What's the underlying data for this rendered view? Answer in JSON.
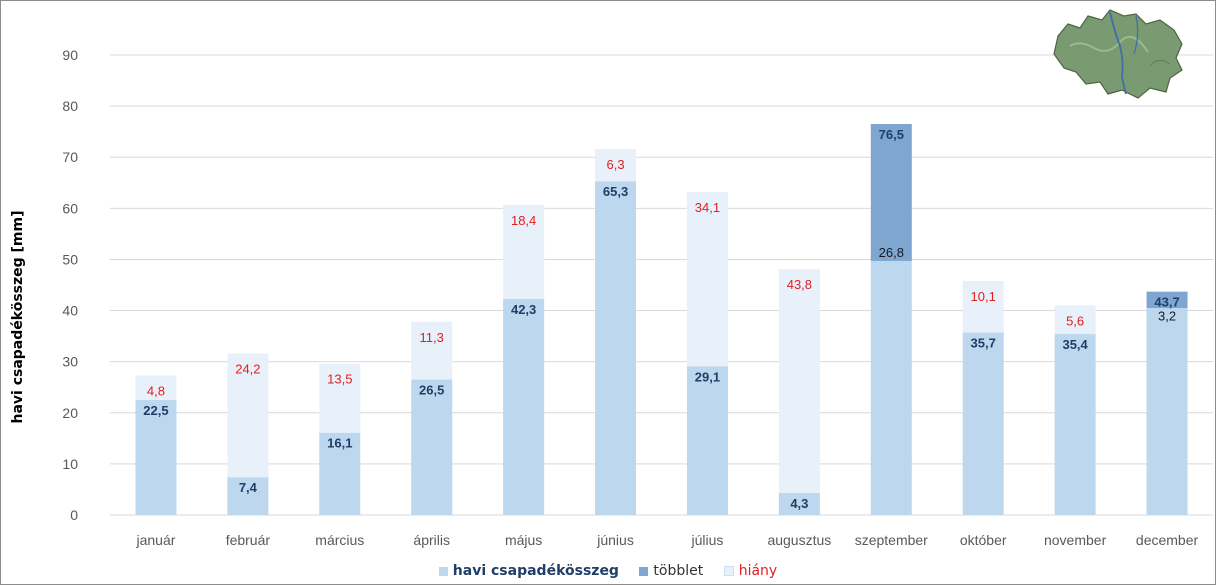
{
  "chart_data": {
    "type": "bar",
    "ylabel": "havi csapadékösszeg [mm]",
    "xlabel": "",
    "ylim": [
      0,
      90
    ],
    "yticks": [
      0,
      10,
      20,
      30,
      40,
      50,
      60,
      70,
      80,
      90
    ],
    "grid": true,
    "legend_position": "bottom",
    "categories": [
      "január",
      "február",
      "március",
      "április",
      "május",
      "június",
      "július",
      "augusztus",
      "szeptember",
      "október",
      "november",
      "december"
    ],
    "series": [
      {
        "name": "havi csapadékösszeg",
        "color": "#bdd7ee",
        "values": [
          22.5,
          7.4,
          16.1,
          26.5,
          42.3,
          65.3,
          29.1,
          4.3,
          76.5,
          35.7,
          35.4,
          43.7
        ]
      },
      {
        "name": "többlet",
        "color": "#7ea6d0",
        "values": [
          null,
          null,
          null,
          null,
          null,
          null,
          null,
          null,
          26.8,
          null,
          null,
          3.2
        ]
      },
      {
        "name": "hiány",
        "color": "#e8f0fa",
        "values": [
          4.8,
          24.2,
          13.5,
          11.3,
          18.4,
          6.3,
          34.1,
          43.8,
          null,
          10.1,
          5.6,
          null
        ]
      }
    ],
    "colors": {
      "label_dark": "#1f3e68",
      "label_red": "#e02020",
      "axis_text": "#595959",
      "grid": "#d9d9d9"
    }
  },
  "legend": {
    "items": [
      {
        "label": "havi csapadékösszeg",
        "color": "#bdd7ee",
        "bold": true
      },
      {
        "label": "többlet",
        "color": "#7ea6d0",
        "bold": false
      },
      {
        "label": "hiány",
        "color": "#e8f0fa",
        "bold": false,
        "text_color": "#e02020"
      }
    ]
  },
  "map_icon": "river-basin-map-icon"
}
